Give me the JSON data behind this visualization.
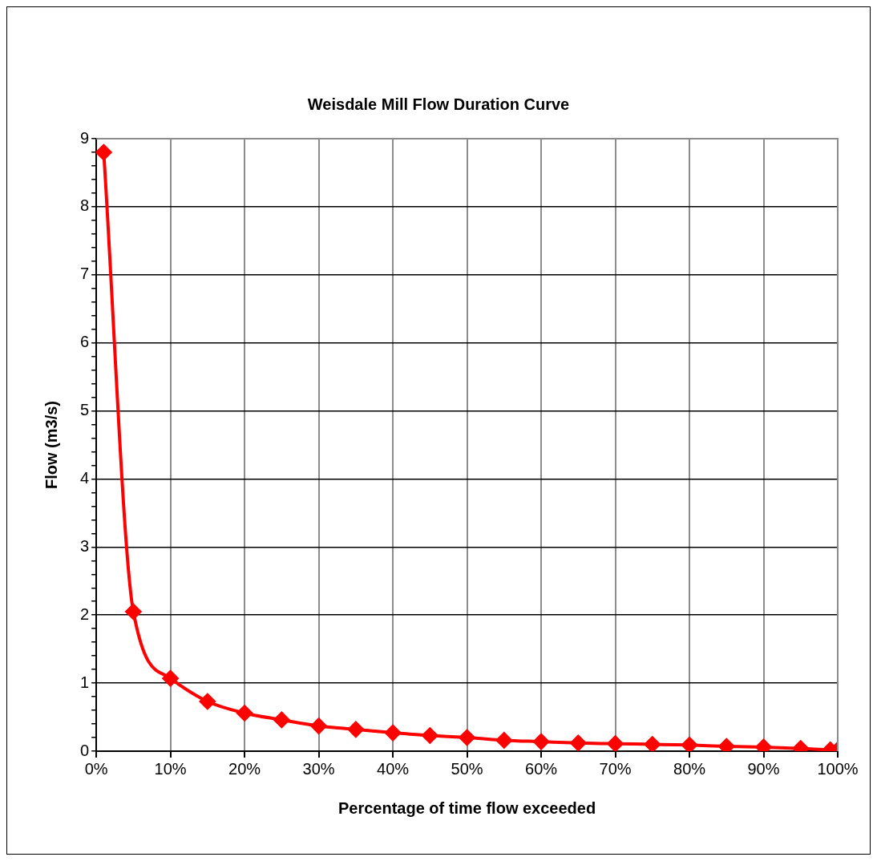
{
  "chart_data": {
    "type": "line",
    "title": "Weisdale Mill Flow Duration Curve",
    "xlabel": "Percentage of time flow exceeded",
    "ylabel": "Flow (m3/s)",
    "x": [
      1,
      5,
      10,
      15,
      20,
      25,
      30,
      35,
      40,
      45,
      50,
      55,
      60,
      65,
      70,
      75,
      80,
      85,
      90,
      95,
      99,
      100
    ],
    "series": [
      {
        "color": "#ff0000",
        "values": [
          8.8,
          2.05,
          1.07,
          0.73,
          0.56,
          0.46,
          0.37,
          0.32,
          0.27,
          0.23,
          0.2,
          0.16,
          0.14,
          0.12,
          0.11,
          0.1,
          0.09,
          0.07,
          0.06,
          0.04,
          0.02,
          0.02
        ]
      }
    ],
    "xlim": [
      0,
      100
    ],
    "xticks": [
      {
        "value": 0,
        "label": "0%"
      },
      {
        "value": 10,
        "label": "10%"
      },
      {
        "value": 20,
        "label": "20%"
      },
      {
        "value": 30,
        "label": "30%"
      },
      {
        "value": 40,
        "label": "40%"
      },
      {
        "value": 50,
        "label": "50%"
      },
      {
        "value": 60,
        "label": "60%"
      },
      {
        "value": 70,
        "label": "70%"
      },
      {
        "value": 80,
        "label": "80%"
      },
      {
        "value": 90,
        "label": "90%"
      },
      {
        "value": 100,
        "label": "100%"
      }
    ],
    "ylim": [
      0,
      9
    ],
    "yticks": [
      0,
      {
        "value": 0.2,
        "label": null
      },
      {
        "value": 0.4,
        "label": null
      },
      {
        "value": 0.6,
        "label": null
      },
      {
        "value": 0.8,
        "label": null
      },
      1,
      {
        "value": 1.2,
        "label": null
      },
      {
        "value": 1.4,
        "label": null
      },
      {
        "value": 1.6,
        "label": null
      },
      {
        "value": 1.8,
        "label": null
      },
      2,
      {
        "value": 2.2,
        "label": null
      },
      {
        "value": 2.4,
        "label": null
      },
      {
        "value": 2.6,
        "label": null
      },
      {
        "value": 2.8,
        "label": null
      },
      3,
      {
        "value": 3.2,
        "label": null
      },
      {
        "value": 3.4,
        "label": null
      },
      {
        "value": 3.6,
        "label": null
      },
      {
        "value": 3.8,
        "label": null
      },
      4,
      {
        "value": 4.2,
        "label": null
      },
      {
        "value": 4.4,
        "label": null
      },
      {
        "value": 4.6,
        "label": null
      },
      {
        "value": 4.8,
        "label": null
      },
      5,
      {
        "value": 5.2,
        "label": null
      },
      {
        "value": 5.4,
        "label": null
      },
      {
        "value": 5.6,
        "label": null
      },
      {
        "value": 5.8,
        "label": null
      },
      6,
      {
        "value": 6.2,
        "label": null
      },
      {
        "value": 6.4,
        "label": null
      },
      {
        "value": 6.6,
        "label": null
      },
      {
        "value": 6.8,
        "label": null
      },
      7,
      {
        "value": 7.2,
        "label": null
      },
      {
        "value": 7.4,
        "label": null
      },
      {
        "value": 7.6,
        "label": null
      },
      {
        "value": 7.8,
        "label": null
      },
      8,
      {
        "value": 8.2,
        "label": null
      },
      {
        "value": 8.4,
        "label": null
      },
      {
        "value": 8.6,
        "label": null
      },
      {
        "value": 8.8,
        "label": null
      },
      9
    ],
    "grid": true,
    "legend": false,
    "marker": "diamond",
    "line_style": "solid"
  }
}
